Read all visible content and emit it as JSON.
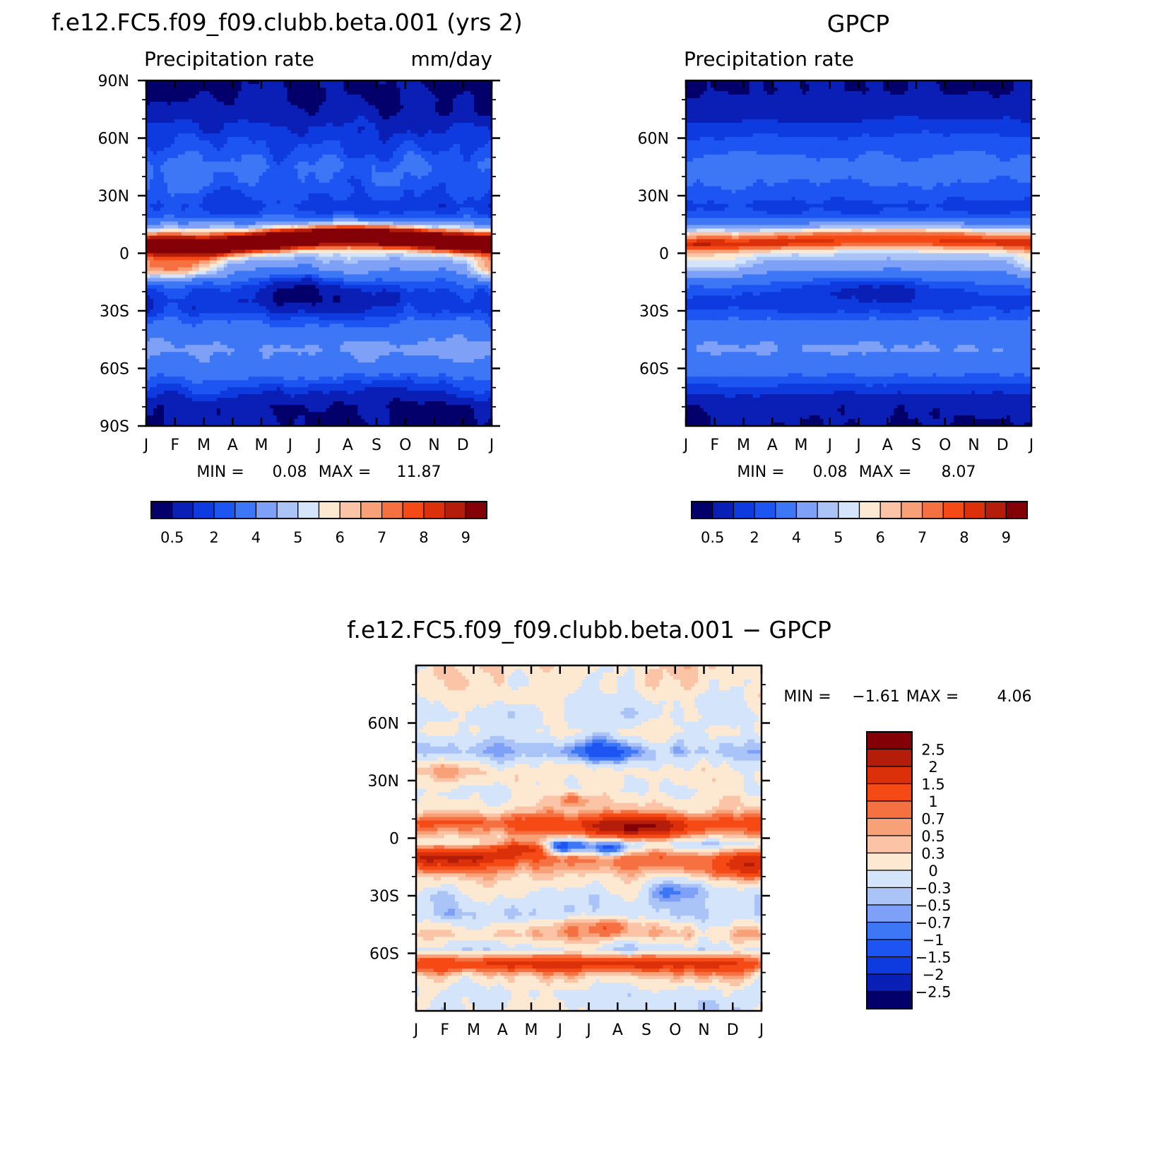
{
  "chart_data": [
    {
      "type": "heatmap",
      "title": "f.e12.FC5.f09_f09.clubb.beta.001 (yrs 2)",
      "left_subtitle": "Precipitation rate",
      "units": "mm/day",
      "x_tick_labels": [
        "J",
        "F",
        "M",
        "A",
        "M",
        "J",
        "J",
        "A",
        "S",
        "O",
        "N",
        "D",
        "J"
      ],
      "y_tick_labels": [
        "90N",
        "60N",
        "30N",
        "0",
        "30S",
        "60S",
        "90S"
      ],
      "ylim": [
        -90,
        90
      ],
      "min_label": "MIN =",
      "min_value": "0.08",
      "max_label": "MAX =",
      "max_value": "11.87",
      "colorbar_labels": [
        "0.5",
        "2",
        "4",
        "5",
        "6",
        "7",
        "8",
        "9"
      ],
      "colorbar_colors": [
        "#03006b",
        "#0a1fb5",
        "#0e3be0",
        "#1d55f2",
        "#3d77f5",
        "#7ea1f7",
        "#abc4f8",
        "#d4e5fb",
        "#fde8d2",
        "#fbc4a6",
        "#f8a178",
        "#f67142",
        "#f54a15",
        "#db300a",
        "#b41d09",
        "#830006"
      ],
      "field": {
        "base": [
          [
            85,
            0.3
          ],
          [
            75,
            0.5
          ],
          [
            65,
            1.1
          ],
          [
            55,
            1.5
          ],
          [
            45,
            2.1
          ],
          [
            35,
            1.8
          ],
          [
            25,
            1.3
          ],
          [
            20,
            1.6
          ],
          [
            15,
            3.2
          ],
          [
            10,
            6.0
          ],
          [
            5,
            7.8
          ],
          [
            0,
            4.8
          ],
          [
            -5,
            3.8
          ],
          [
            -10,
            3.0
          ],
          [
            -15,
            2.0
          ],
          [
            -20,
            1.4
          ],
          [
            -25,
            1.1
          ],
          [
            -30,
            1.2
          ],
          [
            -40,
            2.4
          ],
          [
            -50,
            3.2
          ],
          [
            -60,
            2.6
          ],
          [
            -70,
            1.4
          ],
          [
            -80,
            0.35
          ],
          [
            -90,
            0.25
          ]
        ],
        "itcz": {
          "lat_by_month": [
            3,
            3,
            2,
            4,
            6,
            8,
            10,
            11,
            10,
            9,
            7,
            5,
            4
          ],
          "amplitude": 5.2,
          "width_deg": 5
        },
        "warm_pool": {
          "lat": -8,
          "amplitude": 3.2,
          "months": [
            0,
            3
          ],
          "width_deg": 6
        },
        "dry_pools": [
          [
            -20,
            5.5,
            2.0,
            10,
            1.2
          ]
        ],
        "noise": 0.55,
        "seed": 11
      }
    },
    {
      "type": "heatmap",
      "title": "GPCP",
      "left_subtitle": "Precipitation rate",
      "x_tick_labels": [
        "J",
        "F",
        "M",
        "A",
        "M",
        "J",
        "J",
        "A",
        "S",
        "O",
        "N",
        "D",
        "J"
      ],
      "y_tick_labels": [
        "60N",
        "30N",
        "0",
        "30S",
        "60S"
      ],
      "ylim": [
        -90,
        90
      ],
      "min_label": "MIN =",
      "min_value": "0.08",
      "max_label": "MAX =",
      "max_value": "8.07",
      "colorbar_labels": [
        "0.5",
        "2",
        "4",
        "5",
        "6",
        "7",
        "8",
        "9"
      ],
      "colorbar_colors": [
        "#03006b",
        "#0a1fb5",
        "#0e3be0",
        "#1d55f2",
        "#3d77f5",
        "#7ea1f7",
        "#abc4f8",
        "#d4e5fb",
        "#fde8d2",
        "#fbc4a6",
        "#f8a178",
        "#f67142",
        "#f54a15",
        "#db300a",
        "#b41d09",
        "#830006"
      ],
      "field": {
        "base": [
          [
            85,
            0.3
          ],
          [
            75,
            0.6
          ],
          [
            65,
            1.3
          ],
          [
            55,
            1.8
          ],
          [
            45,
            2.3
          ],
          [
            35,
            2.0
          ],
          [
            25,
            1.4
          ],
          [
            20,
            1.6
          ],
          [
            15,
            3.0
          ],
          [
            10,
            5.0
          ],
          [
            5,
            6.0
          ],
          [
            0,
            4.5
          ],
          [
            -5,
            3.8
          ],
          [
            -10,
            3.0
          ],
          [
            -15,
            2.2
          ],
          [
            -20,
            1.6
          ],
          [
            -25,
            1.3
          ],
          [
            -30,
            1.5
          ],
          [
            -40,
            2.6
          ],
          [
            -50,
            3.1
          ],
          [
            -60,
            2.4
          ],
          [
            -70,
            1.3
          ],
          [
            -80,
            0.35
          ],
          [
            -90,
            0.25
          ]
        ],
        "itcz": {
          "lat_by_month": [
            4,
            5,
            5,
            6,
            7,
            8,
            9,
            9,
            9,
            8,
            7,
            6,
            5
          ],
          "amplitude": 2.0,
          "width_deg": 5
        },
        "warm_pool": {
          "lat": -6,
          "amplitude": 1.0,
          "months": [
            0,
            3
          ],
          "width_deg": 7
        },
        "dry_pools": [
          [
            -17,
            6.5,
            2.5,
            8,
            1.0
          ]
        ],
        "noise": 0.18,
        "seed": 23
      }
    },
    {
      "type": "heatmap",
      "title": "f.e12.FC5.f09_f09.clubb.beta.001 − GPCP",
      "x_tick_labels": [
        "J",
        "F",
        "M",
        "A",
        "M",
        "J",
        "J",
        "A",
        "S",
        "O",
        "N",
        "D",
        "J"
      ],
      "y_tick_labels": [
        "60N",
        "30N",
        "0",
        "30S",
        "60S"
      ],
      "ylim": [
        -90,
        90
      ],
      "min_label": "MIN =",
      "min_value": "−1.61",
      "max_label": "MAX =",
      "max_value": "4.06",
      "colorbar_labels": [
        "2.5",
        "2",
        "1.5",
        "1",
        "0.7",
        "0.5",
        "0.3",
        "0",
        "−0.3",
        "−0.5",
        "−0.7",
        "−1",
        "−1.5",
        "−2",
        "−2.5"
      ],
      "colorbar_colors": [
        "#830006",
        "#b41d09",
        "#db300a",
        "#f54a15",
        "#f67142",
        "#f8a178",
        "#fbc4a6",
        "#fde8d2",
        "#d4e5fb",
        "#abc4f8",
        "#7ea1f7",
        "#3d77f5",
        "#1d55f2",
        "#0e3be0",
        "#0a1fb5",
        "#03006b"
      ],
      "field": {
        "base": [
          [
            85,
            0.15
          ],
          [
            75,
            0.1
          ],
          [
            65,
            -0.15
          ],
          [
            55,
            0.0
          ],
          [
            45,
            -0.35
          ],
          [
            35,
            0.1
          ],
          [
            25,
            0.0
          ],
          [
            15,
            0.3
          ],
          [
            8,
            1.2
          ],
          [
            3,
            0.6
          ],
          [
            -3,
            -0.2
          ],
          [
            -10,
            0.9
          ],
          [
            -20,
            0.3
          ],
          [
            -30,
            -0.1
          ],
          [
            -40,
            -0.35
          ],
          [
            -50,
            0.4
          ],
          [
            -58,
            -0.2
          ],
          [
            -66,
            1.3
          ],
          [
            -72,
            0.3
          ],
          [
            -80,
            -0.1
          ],
          [
            -90,
            -0.05
          ]
        ],
        "blobs": [
          [
            -10,
            1,
            2,
            6,
            1.4
          ],
          [
            -15,
            11.5,
            1.5,
            6,
            1.3
          ],
          [
            5,
            7.5,
            2.0,
            5,
            1.6
          ],
          [
            -5,
            3.7,
            1.0,
            4,
            1.6
          ],
          [
            -5,
            5,
            0.6,
            4,
            -1.5
          ],
          [
            -6,
            6.7,
            0.8,
            4,
            -1.3
          ],
          [
            45,
            6.6,
            1.3,
            6,
            -1.0
          ],
          [
            35,
            1.3,
            1.5,
            6,
            0.5
          ],
          [
            -45,
            6.5,
            1.8,
            5,
            0.7
          ],
          [
            -27,
            9.2,
            1.2,
            6,
            -0.7
          ],
          [
            -65,
            6.5,
            4.5,
            3,
            0.6
          ],
          [
            20,
            5.5,
            0.6,
            4,
            0.8
          ]
        ],
        "noise": 0.35,
        "seed": 7
      }
    }
  ]
}
